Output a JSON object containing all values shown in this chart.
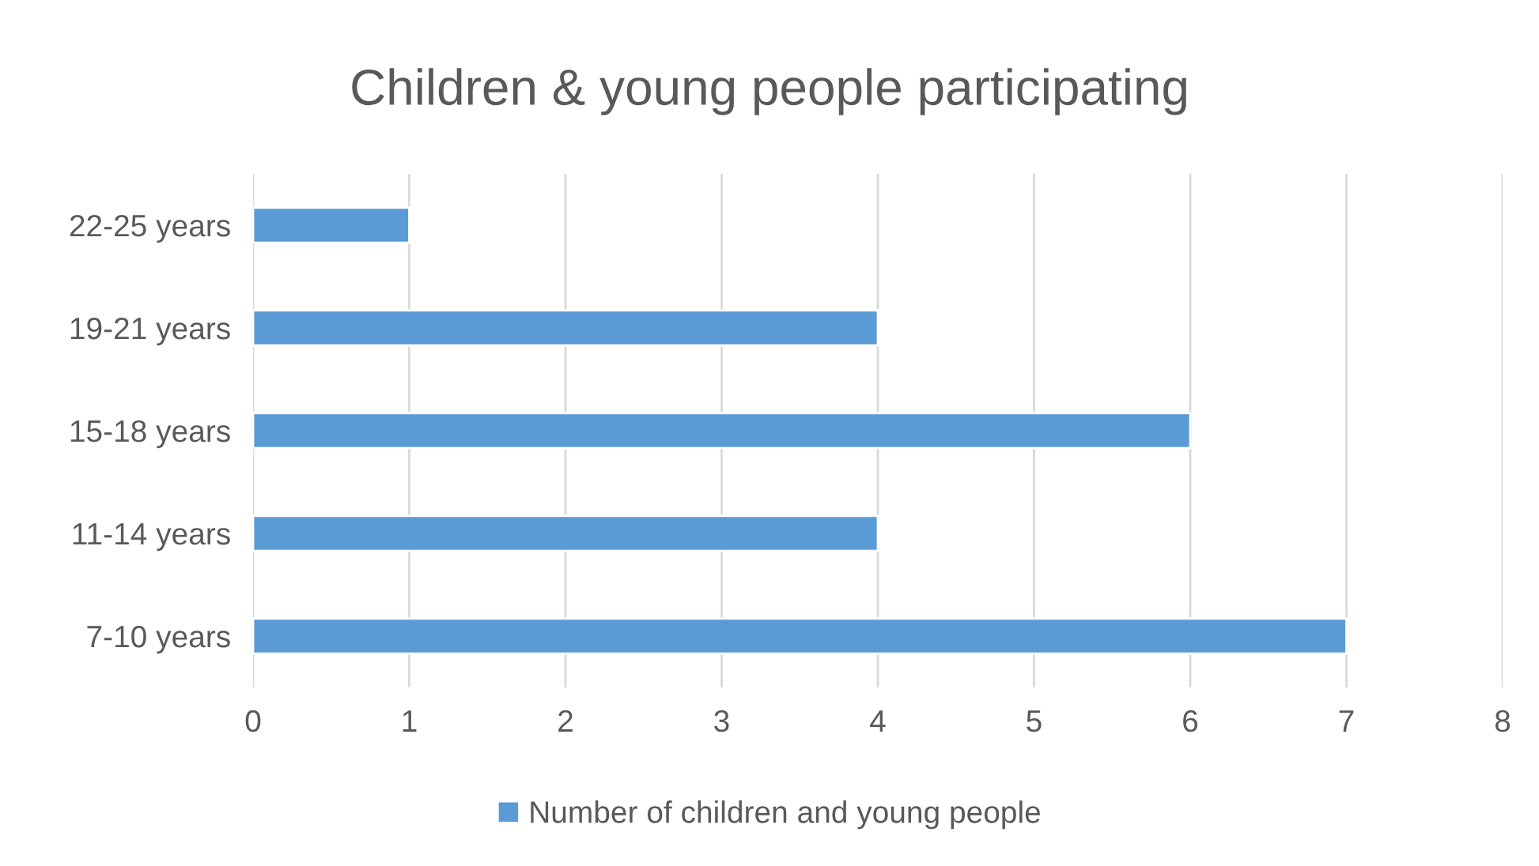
{
  "chart_data": {
    "type": "bar",
    "orientation": "horizontal",
    "title": "Children & young people participating",
    "categories": [
      "22-25 years",
      "19-21 years",
      "15-18 years",
      "11-14 years",
      "7-10 years"
    ],
    "series": [
      {
        "name": "Number of children and young people",
        "color": "#5b9bd5",
        "values": [
          1,
          4,
          6,
          4,
          7
        ]
      }
    ],
    "xlim": [
      0,
      8
    ],
    "xticks": [
      0,
      1,
      2,
      3,
      4,
      5,
      6,
      7,
      8
    ],
    "grid": "x",
    "legend": "bottom"
  }
}
